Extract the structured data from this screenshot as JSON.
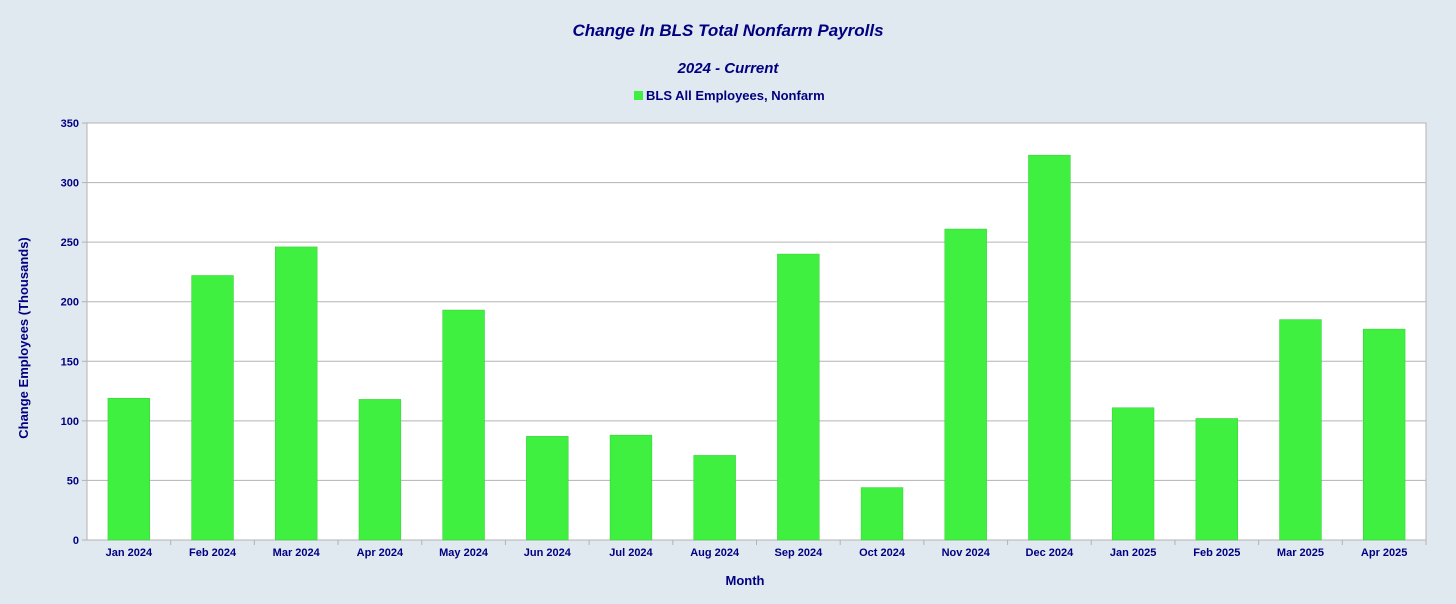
{
  "chart_data": {
    "type": "bar",
    "title": "Change In BLS Total Nonfarm Payrolls",
    "subtitle": "2024 - Current",
    "xlabel": "Month",
    "ylabel": "Change Employees (Thousands)",
    "ylim": [
      0,
      350
    ],
    "yticks": [
      0,
      50,
      100,
      150,
      200,
      250,
      300,
      350
    ],
    "grid": true,
    "legend_position": "top-center",
    "categories": [
      "Jan 2024",
      "Feb 2024",
      "Mar 2024",
      "Apr 2024",
      "May 2024",
      "Jun 2024",
      "Jul 2024",
      "Aug 2024",
      "Sep 2024",
      "Oct 2024",
      "Nov 2024",
      "Dec 2024",
      "Jan 2025",
      "Feb 2025",
      "Mar 2025",
      "Apr 2025"
    ],
    "series": [
      {
        "name": "BLS All Employees, Nonfarm",
        "color": "#40f040",
        "values": [
          119,
          222,
          246,
          118,
          193,
          87,
          88,
          71,
          240,
          44,
          261,
          323,
          111,
          102,
          185,
          177
        ]
      }
    ]
  }
}
